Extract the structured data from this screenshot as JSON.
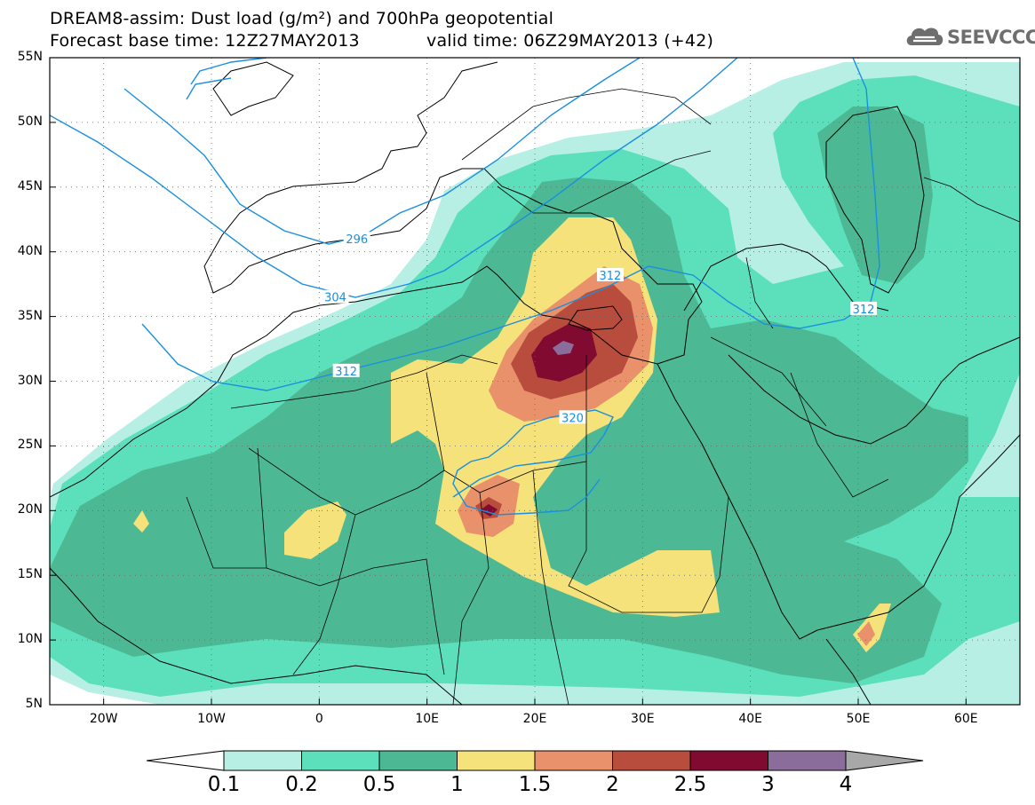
{
  "title": {
    "line1": "DREAM8-assim: Dust load (g/m²) and 700hPa geopotential",
    "line2": "Forecast base time: 12Z27MAY2013",
    "valid": "valid time: 06Z29MAY2013 (+42)"
  },
  "logo": {
    "text": "SEEVCCC",
    "icon": "cloud-icon"
  },
  "axes": {
    "lon_range": [
      -25,
      65
    ],
    "lat_range": [
      5,
      55
    ],
    "lat_labels": [
      {
        "value": 55,
        "text": "55N"
      },
      {
        "value": 50,
        "text": "50N"
      },
      {
        "value": 45,
        "text": "45N"
      },
      {
        "value": 40,
        "text": "40N"
      },
      {
        "value": 35,
        "text": "35N"
      },
      {
        "value": 30,
        "text": "30N"
      },
      {
        "value": 25,
        "text": "25N"
      },
      {
        "value": 20,
        "text": "20N"
      },
      {
        "value": 15,
        "text": "15N"
      },
      {
        "value": 10,
        "text": "10N"
      },
      {
        "value": 5,
        "text": "5N"
      }
    ],
    "lon_labels": [
      {
        "value": -20,
        "text": "20W"
      },
      {
        "value": -10,
        "text": "10W"
      },
      {
        "value": 0,
        "text": "0"
      },
      {
        "value": 10,
        "text": "10E"
      },
      {
        "value": 20,
        "text": "20E"
      },
      {
        "value": 30,
        "text": "30E"
      },
      {
        "value": 40,
        "text": "40E"
      },
      {
        "value": 50,
        "text": "50E"
      },
      {
        "value": 60,
        "text": "60E"
      }
    ],
    "grid": "dotted"
  },
  "colorbar": {
    "colors": [
      "#ffffff",
      "#b8efe4",
      "#5ce0bc",
      "#4db994",
      "#f5e27a",
      "#e8916a",
      "#b84d3e",
      "#800a30",
      "#8b6d9c",
      "#a8a8a8"
    ],
    "labels": [
      "0.1",
      "0.2",
      "0.5",
      "1",
      "1.5",
      "2",
      "2.5",
      "3",
      "4"
    ]
  },
  "contours": {
    "color": "#1a8fe0",
    "labels": [
      {
        "text": "296",
        "lon": 3.5,
        "lat": 41
      },
      {
        "text": "304",
        "lon": 1.5,
        "lat": 36.5
      },
      {
        "text": "312",
        "lon": 2.5,
        "lat": 30.8
      },
      {
        "text": "312",
        "lon": 27,
        "lat": 38.2
      },
      {
        "text": "312",
        "lon": 50.5,
        "lat": 35.6
      },
      {
        "text": "320",
        "lon": 23.5,
        "lat": 27.2
      }
    ]
  }
}
